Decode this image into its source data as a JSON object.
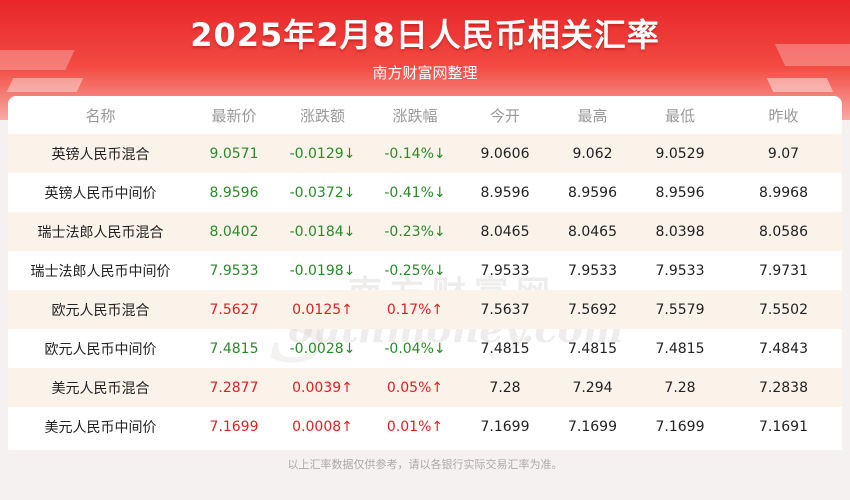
{
  "header": {
    "title": "2025年2月8日人民币相关汇率",
    "subtitle": "南方财富网整理"
  },
  "table": {
    "columns": [
      "名称",
      "最新价",
      "涨跌额",
      "涨跌幅",
      "今开",
      "最高",
      "最低",
      "昨收"
    ],
    "rows": [
      {
        "name": "英镑人民币混合",
        "latest": "9.0571",
        "change": "-0.0129↓",
        "pct": "-0.14%↓",
        "open": "9.0606",
        "high": "9.062",
        "low": "9.0529",
        "prev": "9.07",
        "direction": "down"
      },
      {
        "name": "英镑人民币中间价",
        "latest": "8.9596",
        "change": "-0.0372↓",
        "pct": "-0.41%↓",
        "open": "8.9596",
        "high": "8.9596",
        "low": "8.9596",
        "prev": "8.9968",
        "direction": "down"
      },
      {
        "name": "瑞士法郎人民币混合",
        "latest": "8.0402",
        "change": "-0.0184↓",
        "pct": "-0.23%↓",
        "open": "8.0465",
        "high": "8.0465",
        "low": "8.0398",
        "prev": "8.0586",
        "direction": "down"
      },
      {
        "name": "瑞士法郎人民币中间价",
        "latest": "7.9533",
        "change": "-0.0198↓",
        "pct": "-0.25%↓",
        "open": "7.9533",
        "high": "7.9533",
        "low": "7.9533",
        "prev": "7.9731",
        "direction": "down"
      },
      {
        "name": "欧元人民币混合",
        "latest": "7.5627",
        "change": "0.0125↑",
        "pct": "0.17%↑",
        "open": "7.5637",
        "high": "7.5692",
        "low": "7.5579",
        "prev": "7.5502",
        "direction": "up"
      },
      {
        "name": "欧元人民币中间价",
        "latest": "7.4815",
        "change": "-0.0028↓",
        "pct": "-0.04%↓",
        "open": "7.4815",
        "high": "7.4815",
        "low": "7.4815",
        "prev": "7.4843",
        "direction": "down"
      },
      {
        "name": "美元人民币混合",
        "latest": "7.2877",
        "change": "0.0039↑",
        "pct": "0.05%↑",
        "open": "7.28",
        "high": "7.294",
        "low": "7.28",
        "prev": "7.2838",
        "direction": "up"
      },
      {
        "name": "美元人民币中间价",
        "latest": "7.1699",
        "change": "0.0008↑",
        "pct": "0.01%↑",
        "open": "7.1699",
        "high": "7.1699",
        "low": "7.1699",
        "prev": "7.1691",
        "direction": "up"
      }
    ]
  },
  "watermark": {
    "cn": "南方财富网",
    "en": "outhmoney.com",
    "s": "S"
  },
  "footer": {
    "note": "以上汇率数据仅供参考，请以各银行实际交易汇率为准。"
  },
  "colors": {
    "up": "#e0201f",
    "down": "#2a8a2a",
    "banner": "#e8262a"
  }
}
